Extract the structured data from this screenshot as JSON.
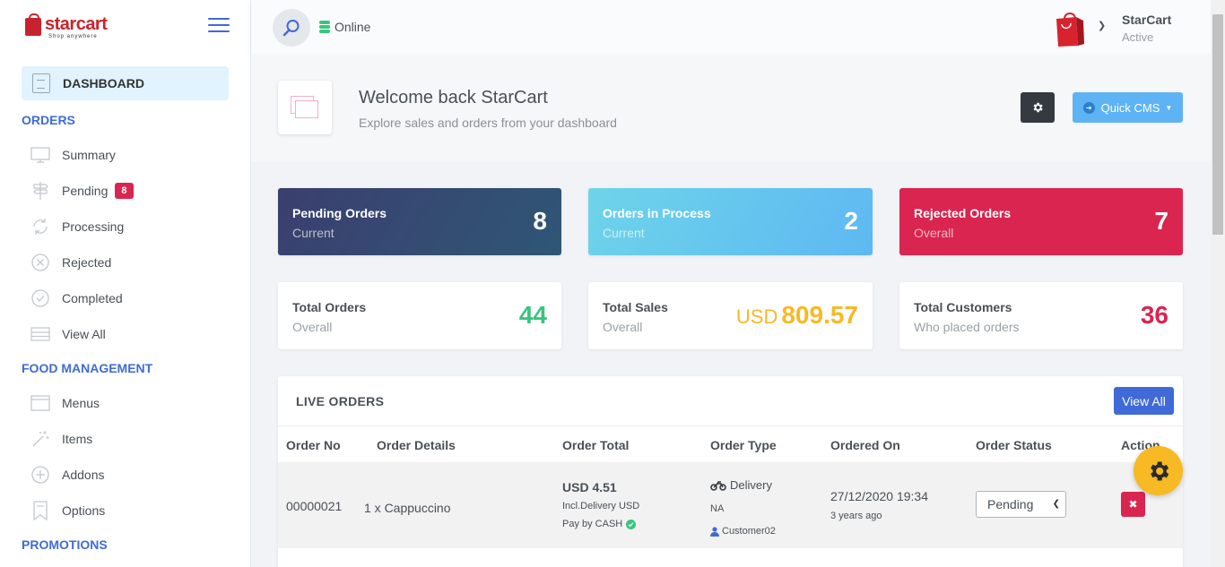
{
  "brand": {
    "name": "starcart",
    "tagline": "Shop anywhere"
  },
  "sidebar": {
    "active": {
      "label": "DASHBOARD"
    },
    "orders_heading": "ORDERS",
    "order_items": [
      {
        "label": "Summary",
        "icon": "monitor-icon"
      },
      {
        "label": "Pending",
        "icon": "signpost-icon",
        "badge": "8"
      },
      {
        "label": "Processing",
        "icon": "refresh-icon"
      },
      {
        "label": "Rejected",
        "icon": "close-circle-icon"
      },
      {
        "label": "Completed",
        "icon": "check-circle-icon"
      },
      {
        "label": "View All",
        "icon": "list-icon"
      }
    ],
    "food_heading": "FOOD MANAGEMENT",
    "food_items": [
      {
        "label": "Menus",
        "icon": "browser-icon"
      },
      {
        "label": "Items",
        "icon": "magic-wand-icon"
      },
      {
        "label": "Addons",
        "icon": "plus-circle-icon"
      },
      {
        "label": "Options",
        "icon": "bookmark-icon"
      }
    ],
    "promotions_heading": "PROMOTIONS"
  },
  "header": {
    "status": "Online",
    "user_name": "StarCart",
    "user_status": "Active"
  },
  "title": {
    "heading": "Welcome back StarCart",
    "subheading": "Explore sales and orders from your dashboard",
    "quick_cms": "Quick CMS"
  },
  "cards": {
    "pending": {
      "title": "Pending Orders",
      "sub": "Current",
      "value": "8"
    },
    "process": {
      "title": "Orders in Process",
      "sub": "Current",
      "value": "2"
    },
    "rejected": {
      "title": "Rejected Orders",
      "sub": "Overall",
      "value": "7"
    },
    "total_orders": {
      "title": "Total Orders",
      "sub": "Overall",
      "value": "44"
    },
    "total_sales": {
      "title": "Total Sales",
      "sub": "Overall",
      "currency": "USD",
      "value": "809.57"
    },
    "total_customers": {
      "title": "Total Customers",
      "sub": "Who placed orders",
      "value": "36"
    }
  },
  "live_orders": {
    "title": "LIVE ORDERS",
    "view_all": "View All",
    "columns": [
      "Order No",
      "Order Details",
      "Order Total",
      "Order Type",
      "Ordered On",
      "Order Status",
      "Action"
    ],
    "rows": [
      {
        "order_no": "00000021",
        "details": "1 x  Cappuccino",
        "total": "USD 4.51",
        "incl": "Incl.Delivery USD",
        "pay": "Pay by CASH",
        "type": "Delivery",
        "area": "NA",
        "customer": "Customer02",
        "ordered_on": "27/12/2020 19:34",
        "ago": "3 years ago",
        "status": "Pending"
      }
    ]
  },
  "colors": {
    "accent": "#3f6ad8",
    "danger": "#d92550",
    "success": "#3ac47d",
    "warning": "#f7b924"
  }
}
